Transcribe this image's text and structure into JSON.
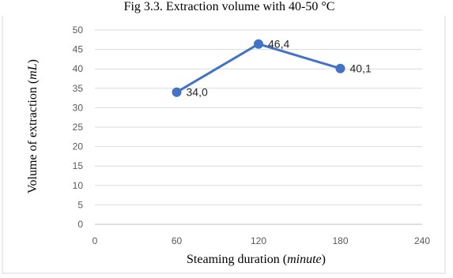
{
  "chart_data": {
    "type": "line",
    "title": "Fig 3.3. Extraction volume with 40-50 °C",
    "xlabel": {
      "prefix": "Steaming duration (",
      "unit": "minute",
      "suffix": ")"
    },
    "ylabel": {
      "prefix": "Volume of extraction (",
      "unit": "mL",
      "suffix": ")"
    },
    "xlim": [
      0,
      240
    ],
    "ylim": [
      0,
      50
    ],
    "x_ticks": [
      0,
      60,
      120,
      180,
      240
    ],
    "y_ticks": [
      0,
      5,
      10,
      15,
      20,
      25,
      30,
      35,
      40,
      45,
      50
    ],
    "grid": {
      "horizontal": true,
      "vertical": false
    },
    "series": [
      {
        "color": "#4472c4",
        "x": [
          60,
          120,
          180
        ],
        "y": [
          34.0,
          46.4,
          40.1
        ],
        "data_labels": [
          "34,0",
          "46,4",
          "40,1"
        ]
      }
    ]
  }
}
